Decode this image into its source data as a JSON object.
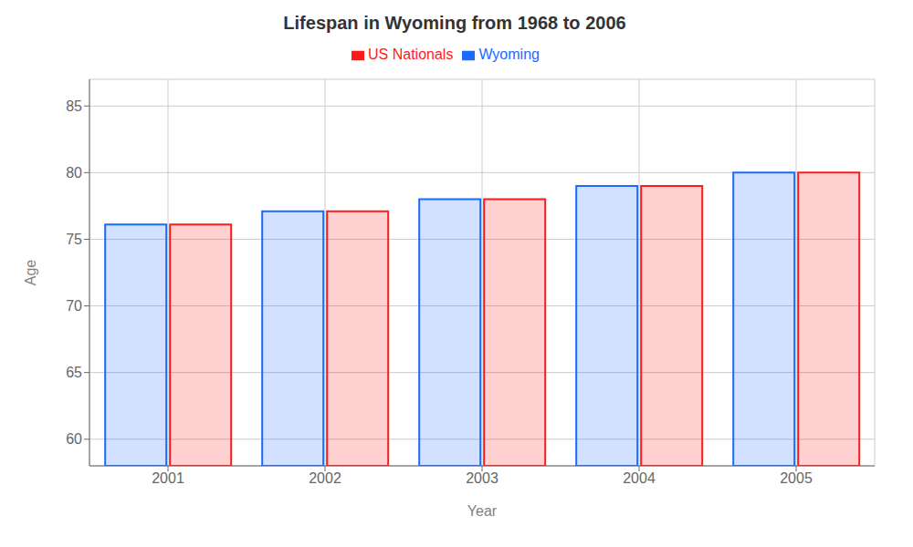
{
  "chart_data": {
    "type": "bar",
    "title": "Lifespan in Wyoming from 1968 to 2006",
    "x_label": "Year",
    "y_label": "Age",
    "categories": [
      "2001",
      "2002",
      "2003",
      "2004",
      "2005"
    ],
    "series": [
      {
        "name": "Wyoming",
        "color": "#1a6aff",
        "values": [
          76.1,
          77.1,
          78.0,
          79.0,
          80.0
        ]
      },
      {
        "name": "US Nationals",
        "color": "#ff1a1a",
        "values": [
          76.1,
          77.1,
          78.0,
          79.0,
          80.0
        ]
      }
    ],
    "ylim": [
      58,
      87
    ],
    "yticks": [
      60,
      65,
      70,
      75,
      80,
      85
    ],
    "grid": true,
    "legend": "top"
  }
}
